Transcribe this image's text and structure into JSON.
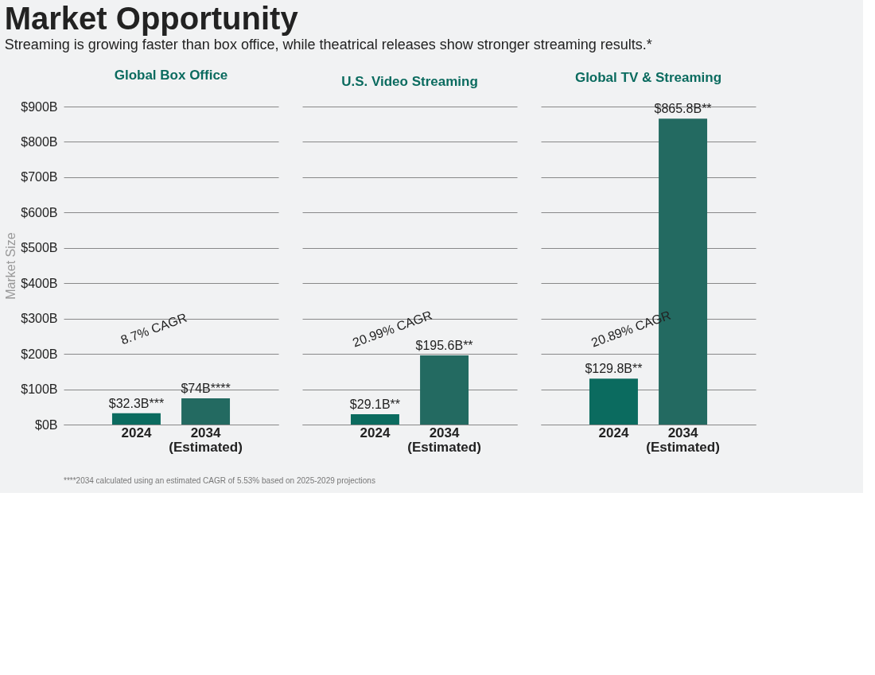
{
  "chart_data": [
    {
      "type": "other",
      "title": "Market Opportunity",
      "subtitle": "Streaming is growing faster than box office, while theatrical releases show stronger streaming results.*",
      "annotations": [
        "****2034 calculated using an estimated CAGR of 5.53% based on 2025-2029 projections"
      ]
    },
    {
      "type": "bar",
      "title": "Global Box Office",
      "ylabel": "Market Size",
      "categories": [
        "2024",
        "2034\n(Estimated)"
      ],
      "values": [
        32.3,
        74
      ],
      "colors": [
        "#0b6b5f",
        "#236a61"
      ],
      "value_labels": [
        "$32.3B***",
        "$74B****"
      ],
      "ylim": [
        0,
        900
      ],
      "yticks": [
        {
          "value": 0,
          "label": "$0B"
        },
        {
          "value": 100,
          "label": "$100B"
        },
        {
          "value": 200,
          "label": "$200B"
        },
        {
          "value": 300,
          "label": "$300B"
        },
        {
          "value": 400,
          "label": "$400B"
        },
        {
          "value": 500,
          "label": "$500B"
        },
        {
          "value": 600,
          "label": "$600B"
        },
        {
          "value": 700,
          "label": "$700B"
        },
        {
          "value": 800,
          "label": "$800B"
        },
        {
          "value": 900,
          "label": "$900B"
        }
      ],
      "grid": "y",
      "annotations": [
        "8.7% CAGR"
      ]
    },
    {
      "type": "bar",
      "title": "U.S. Video Streaming",
      "categories": [
        "2024",
        "2034\n(Estimated)"
      ],
      "values": [
        29.1,
        195.6
      ],
      "colors": [
        "#0b6b5f",
        "#236a61"
      ],
      "value_labels": [
        "$29.1B**",
        "$195.6B**"
      ],
      "ylim": [
        0,
        900
      ],
      "yticks": [
        0,
        100,
        200,
        300,
        400,
        500,
        600,
        700,
        800,
        900
      ],
      "grid": "y",
      "tick_labels": "x",
      "annotations": [
        "20.99% CAGR"
      ]
    },
    {
      "type": "bar",
      "title": "Global TV & Streaming",
      "categories": [
        "2024",
        "2034\n(Estimated)"
      ],
      "values": [
        129.8,
        865.8
      ],
      "colors": [
        "#0b6b5f",
        "#236a61"
      ],
      "value_labels": [
        "$129.8B**",
        "$865.8B**"
      ],
      "ylim": [
        0,
        900
      ],
      "yticks": [
        0,
        100,
        200,
        300,
        400,
        500,
        600,
        700,
        800,
        900
      ],
      "grid": "y",
      "tick_labels": "x",
      "annotations": [
        "20.89% CAGR"
      ]
    }
  ]
}
